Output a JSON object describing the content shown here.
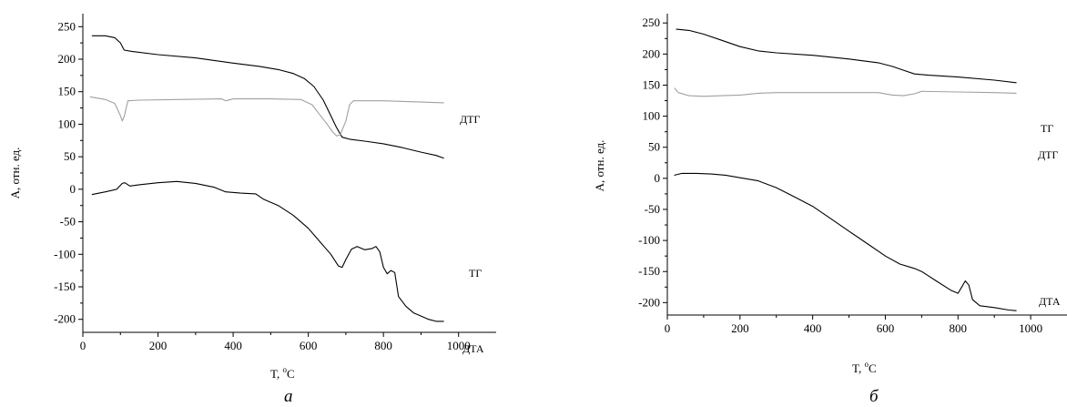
{
  "chart_data": [
    {
      "type": "line",
      "panel_label": "а",
      "xlabel": "T, ",
      "xlabel_sup": "o",
      "xlabel_unit": "C",
      "ylabel": "A, отн. ед.",
      "xlim": [
        0,
        1100
      ],
      "ylim": [
        -220,
        270
      ],
      "xticks": [
        0,
        200,
        400,
        600,
        800,
        1000
      ],
      "yticks": [
        250,
        200,
        150,
        100,
        50,
        0,
        -50,
        -100,
        -150,
        -200
      ],
      "series": [
        {
          "name": "ТГ",
          "color": "#000000",
          "points": [
            [
              25,
              236
            ],
            [
              60,
              236
            ],
            [
              85,
              233
            ],
            [
              100,
              225
            ],
            [
              110,
              214
            ],
            [
              130,
              212
            ],
            [
              200,
              207
            ],
            [
              300,
              202
            ],
            [
              400,
              194
            ],
            [
              470,
              189
            ],
            [
              520,
              184
            ],
            [
              560,
              178
            ],
            [
              590,
              170
            ],
            [
              615,
              158
            ],
            [
              640,
              137
            ],
            [
              660,
              113
            ],
            [
              675,
              95
            ],
            [
              690,
              80
            ],
            [
              710,
              77
            ],
            [
              750,
              74
            ],
            [
              800,
              70
            ],
            [
              850,
              64
            ],
            [
              900,
              57
            ],
            [
              940,
              52
            ],
            [
              960,
              48
            ]
          ]
        },
        {
          "name": "ДТГ",
          "color": "#a0a0a0",
          "points": [
            [
              20,
              142
            ],
            [
              60,
              138
            ],
            [
              85,
              132
            ],
            [
              100,
              113
            ],
            [
              105,
              105
            ],
            [
              110,
              112
            ],
            [
              120,
              136
            ],
            [
              150,
              137
            ],
            [
              250,
              138
            ],
            [
              370,
              139
            ],
            [
              380,
              136
            ],
            [
              400,
              139
            ],
            [
              500,
              139
            ],
            [
              580,
              138
            ],
            [
              610,
              130
            ],
            [
              630,
              115
            ],
            [
              650,
              100
            ],
            [
              665,
              88
            ],
            [
              675,
              82
            ],
            [
              685,
              84
            ],
            [
              700,
              105
            ],
            [
              710,
              130
            ],
            [
              720,
              136
            ],
            [
              800,
              136
            ],
            [
              900,
              134
            ],
            [
              960,
              133
            ]
          ]
        },
        {
          "name": "ДТА",
          "color": "#000000",
          "points": [
            [
              25,
              -8
            ],
            [
              60,
              -4
            ],
            [
              90,
              0
            ],
            [
              105,
              9
            ],
            [
              112,
              10
            ],
            [
              125,
              5
            ],
            [
              150,
              7
            ],
            [
              200,
              10
            ],
            [
              250,
              12
            ],
            [
              300,
              9
            ],
            [
              350,
              3
            ],
            [
              380,
              -4
            ],
            [
              420,
              -6
            ],
            [
              460,
              -7
            ],
            [
              480,
              -15
            ],
            [
              520,
              -25
            ],
            [
              560,
              -40
            ],
            [
              600,
              -60
            ],
            [
              630,
              -80
            ],
            [
              660,
              -100
            ],
            [
              680,
              -118
            ],
            [
              690,
              -120
            ],
            [
              700,
              -108
            ],
            [
              715,
              -92
            ],
            [
              730,
              -88
            ],
            [
              750,
              -93
            ],
            [
              770,
              -91
            ],
            [
              780,
              -88
            ],
            [
              790,
              -96
            ],
            [
              800,
              -120
            ],
            [
              810,
              -130
            ],
            [
              820,
              -125
            ],
            [
              830,
              -128
            ],
            [
              840,
              -165
            ],
            [
              860,
              -180
            ],
            [
              880,
              -190
            ],
            [
              900,
              -195
            ],
            [
              920,
              -200
            ],
            [
              940,
              -203
            ],
            [
              960,
              -203
            ]
          ]
        }
      ]
    },
    {
      "type": "line",
      "panel_label": "б",
      "xlabel": "T, ",
      "xlabel_sup": "o",
      "xlabel_unit": "C",
      "ylabel": "A, отн. ед.",
      "xlim": [
        0,
        1100
      ],
      "ylim": [
        -220,
        265
      ],
      "xticks": [
        0,
        200,
        400,
        600,
        800,
        1000
      ],
      "yticks": [
        250,
        200,
        150,
        100,
        50,
        0,
        -50,
        -100,
        -150,
        -200
      ],
      "series": [
        {
          "name": "ТГ",
          "color": "#000000",
          "points": [
            [
              25,
              240
            ],
            [
              60,
              238
            ],
            [
              100,
              232
            ],
            [
              150,
              222
            ],
            [
              200,
              212
            ],
            [
              250,
              205
            ],
            [
              300,
              202
            ],
            [
              400,
              198
            ],
            [
              500,
              192
            ],
            [
              580,
              186
            ],
            [
              620,
              180
            ],
            [
              650,
              174
            ],
            [
              680,
              168
            ],
            [
              720,
              166
            ],
            [
              800,
              163
            ],
            [
              900,
              158
            ],
            [
              960,
              154
            ]
          ]
        },
        {
          "name": "ДТГ",
          "color": "#a0a0a0",
          "points": [
            [
              20,
              145
            ],
            [
              30,
              138
            ],
            [
              60,
              133
            ],
            [
              100,
              132
            ],
            [
              150,
              133
            ],
            [
              200,
              134
            ],
            [
              250,
              137
            ],
            [
              300,
              138
            ],
            [
              400,
              138
            ],
            [
              500,
              138
            ],
            [
              580,
              138
            ],
            [
              620,
              134
            ],
            [
              650,
              133
            ],
            [
              680,
              136
            ],
            [
              700,
              140
            ],
            [
              800,
              139
            ],
            [
              900,
              138
            ],
            [
              960,
              137
            ]
          ]
        },
        {
          "name": "ДТА",
          "color": "#000000",
          "points": [
            [
              20,
              5
            ],
            [
              40,
              8
            ],
            [
              80,
              8
            ],
            [
              120,
              7
            ],
            [
              160,
              5
            ],
            [
              200,
              1
            ],
            [
              250,
              -4
            ],
            [
              300,
              -15
            ],
            [
              350,
              -30
            ],
            [
              400,
              -45
            ],
            [
              450,
              -65
            ],
            [
              500,
              -85
            ],
            [
              550,
              -105
            ],
            [
              600,
              -125
            ],
            [
              640,
              -138
            ],
            [
              680,
              -145
            ],
            [
              700,
              -150
            ],
            [
              740,
              -165
            ],
            [
              780,
              -180
            ],
            [
              800,
              -185
            ],
            [
              810,
              -175
            ],
            [
              820,
              -165
            ],
            [
              830,
              -172
            ],
            [
              840,
              -195
            ],
            [
              860,
              -205
            ],
            [
              900,
              -208
            ],
            [
              940,
              -212
            ],
            [
              960,
              -213
            ]
          ]
        }
      ]
    }
  ]
}
